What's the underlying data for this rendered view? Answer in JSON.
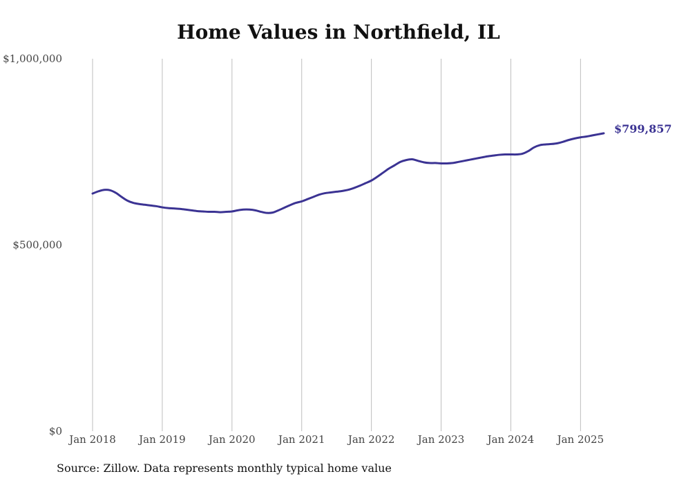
{
  "chart_data": {
    "type": "line",
    "title": "Home Values in Northfield, IL",
    "xlabel": "",
    "ylabel": "",
    "ylim": [
      0,
      1000000
    ],
    "xlim": [
      "2018-01",
      "2025-05"
    ],
    "yticks": [
      0,
      500000,
      1000000
    ],
    "ytick_labels": [
      "$0",
      "$500,000",
      "$1,000,000"
    ],
    "xticks": [
      "2018-01",
      "2019-01",
      "2020-01",
      "2021-01",
      "2022-01",
      "2023-01",
      "2024-01",
      "2025-01"
    ],
    "xtick_labels": [
      "Jan 2018",
      "Jan 2019",
      "Jan 2020",
      "Jan 2021",
      "Jan 2022",
      "Jan 2023",
      "Jan 2024",
      "Jan 2025"
    ],
    "grid": "vertical",
    "line_color": "#3b3393",
    "end_label": "$799,857",
    "series": [
      {
        "x": [
          "2018-01",
          "2018-02",
          "2018-03",
          "2018-04",
          "2018-05",
          "2018-06",
          "2018-07",
          "2018-08",
          "2018-09",
          "2018-10",
          "2018-11",
          "2018-12",
          "2019-01",
          "2019-02",
          "2019-03",
          "2019-04",
          "2019-05",
          "2019-06",
          "2019-07",
          "2019-08",
          "2019-09",
          "2019-10",
          "2019-11",
          "2019-12",
          "2020-01",
          "2020-02",
          "2020-03",
          "2020-04",
          "2020-05",
          "2020-06",
          "2020-07",
          "2020-08",
          "2020-09",
          "2020-10",
          "2020-11",
          "2020-12",
          "2021-01",
          "2021-02",
          "2021-03",
          "2021-04",
          "2021-05",
          "2021-06",
          "2021-07",
          "2021-08",
          "2021-09",
          "2021-10",
          "2021-11",
          "2021-12",
          "2022-01",
          "2022-02",
          "2022-03",
          "2022-04",
          "2022-05",
          "2022-06",
          "2022-07",
          "2022-08",
          "2022-09",
          "2022-10",
          "2022-11",
          "2022-12",
          "2023-01",
          "2023-02",
          "2023-03",
          "2023-04",
          "2023-05",
          "2023-06",
          "2023-07",
          "2023-08",
          "2023-09",
          "2023-10",
          "2023-11",
          "2023-12",
          "2024-01",
          "2024-02",
          "2024-03",
          "2024-04",
          "2024-05",
          "2024-06",
          "2024-07",
          "2024-08",
          "2024-09",
          "2024-10",
          "2024-11",
          "2024-12",
          "2025-01",
          "2025-02",
          "2025-03",
          "2025-04",
          "2025-05"
        ],
        "values": [
          638000,
          644000,
          648000,
          647000,
          640000,
          629000,
          619000,
          613000,
          610000,
          608000,
          606000,
          604000,
          601000,
          599000,
          598000,
          597000,
          595000,
          593000,
          591000,
          590000,
          589000,
          589000,
          588000,
          589000,
          590000,
          593000,
          595000,
          595000,
          593000,
          589000,
          586000,
          587000,
          593000,
          600000,
          607000,
          613000,
          617000,
          623000,
          629000,
          635000,
          639000,
          641000,
          643000,
          645000,
          648000,
          653000,
          659000,
          666000,
          673000,
          683000,
          694000,
          705000,
          714000,
          723000,
          728000,
          730000,
          726000,
          722000,
          720000,
          720000,
          719000,
          719000,
          720000,
          723000,
          726000,
          729000,
          732000,
          735000,
          738000,
          740000,
          742000,
          743000,
          743000,
          743000,
          745000,
          752000,
          762000,
          768000,
          770000,
          771000,
          773000,
          777000,
          782000,
          786000,
          789000,
          791000,
          794000,
          797000,
          799857
        ]
      }
    ]
  },
  "source_note": "Source: Zillow. Data represents monthly typical home value"
}
